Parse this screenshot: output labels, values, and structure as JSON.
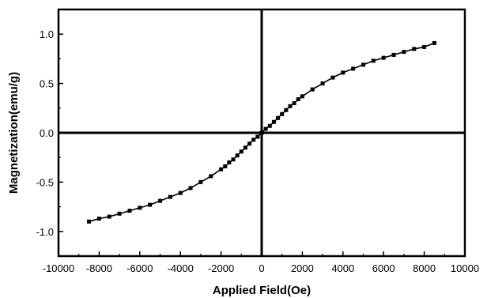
{
  "chart_data": {
    "type": "scatter",
    "title": "",
    "xlabel": "Applied Field(Oe)",
    "ylabel": "Magnetization(emu/g)",
    "xlim": [
      -10000,
      10000
    ],
    "ylim": [
      -1.25,
      1.25
    ],
    "x_ticks": [
      -10000,
      -8000,
      -6000,
      -4000,
      -2000,
      0,
      2000,
      4000,
      6000,
      8000,
      10000
    ],
    "y_ticks": [
      -1.0,
      -0.5,
      0.0,
      0.5,
      1.0
    ],
    "x_tick_labels": [
      "-10000",
      "-8000",
      "-6000",
      "-4000",
      "-2000",
      "0",
      "2000",
      "4000",
      "6000",
      "8000",
      "10000"
    ],
    "y_tick_labels": [
      "-1.0",
      "-0.5",
      "0.0",
      "0.5",
      "1.0"
    ],
    "grid": false,
    "zero_lines": true,
    "series": [
      {
        "marker": "square",
        "line": true,
        "x": [
          -8500,
          -8000,
          -7500,
          -7000,
          -6500,
          -6000,
          -5500,
          -5000,
          -4500,
          -4000,
          -3500,
          -3000,
          -2500,
          -2000,
          -1800,
          -1600,
          -1400,
          -1200,
          -1000,
          -800,
          -600,
          -400,
          -200,
          0,
          200,
          400,
          600,
          800,
          1000,
          1200,
          1400,
          1600,
          1800,
          2000,
          2500,
          3000,
          3500,
          4000,
          4500,
          5000,
          5500,
          6000,
          6500,
          7000,
          7500,
          8000,
          8500
        ],
        "y": [
          -0.9,
          -0.87,
          -0.85,
          -0.82,
          -0.79,
          -0.76,
          -0.73,
          -0.69,
          -0.65,
          -0.61,
          -0.56,
          -0.5,
          -0.44,
          -0.37,
          -0.34,
          -0.3,
          -0.27,
          -0.23,
          -0.19,
          -0.15,
          -0.11,
          -0.07,
          -0.04,
          0.0,
          0.04,
          0.07,
          0.11,
          0.15,
          0.19,
          0.23,
          0.27,
          0.3,
          0.34,
          0.37,
          0.44,
          0.5,
          0.56,
          0.61,
          0.65,
          0.69,
          0.73,
          0.76,
          0.79,
          0.82,
          0.85,
          0.87,
          0.91
        ]
      }
    ]
  }
}
